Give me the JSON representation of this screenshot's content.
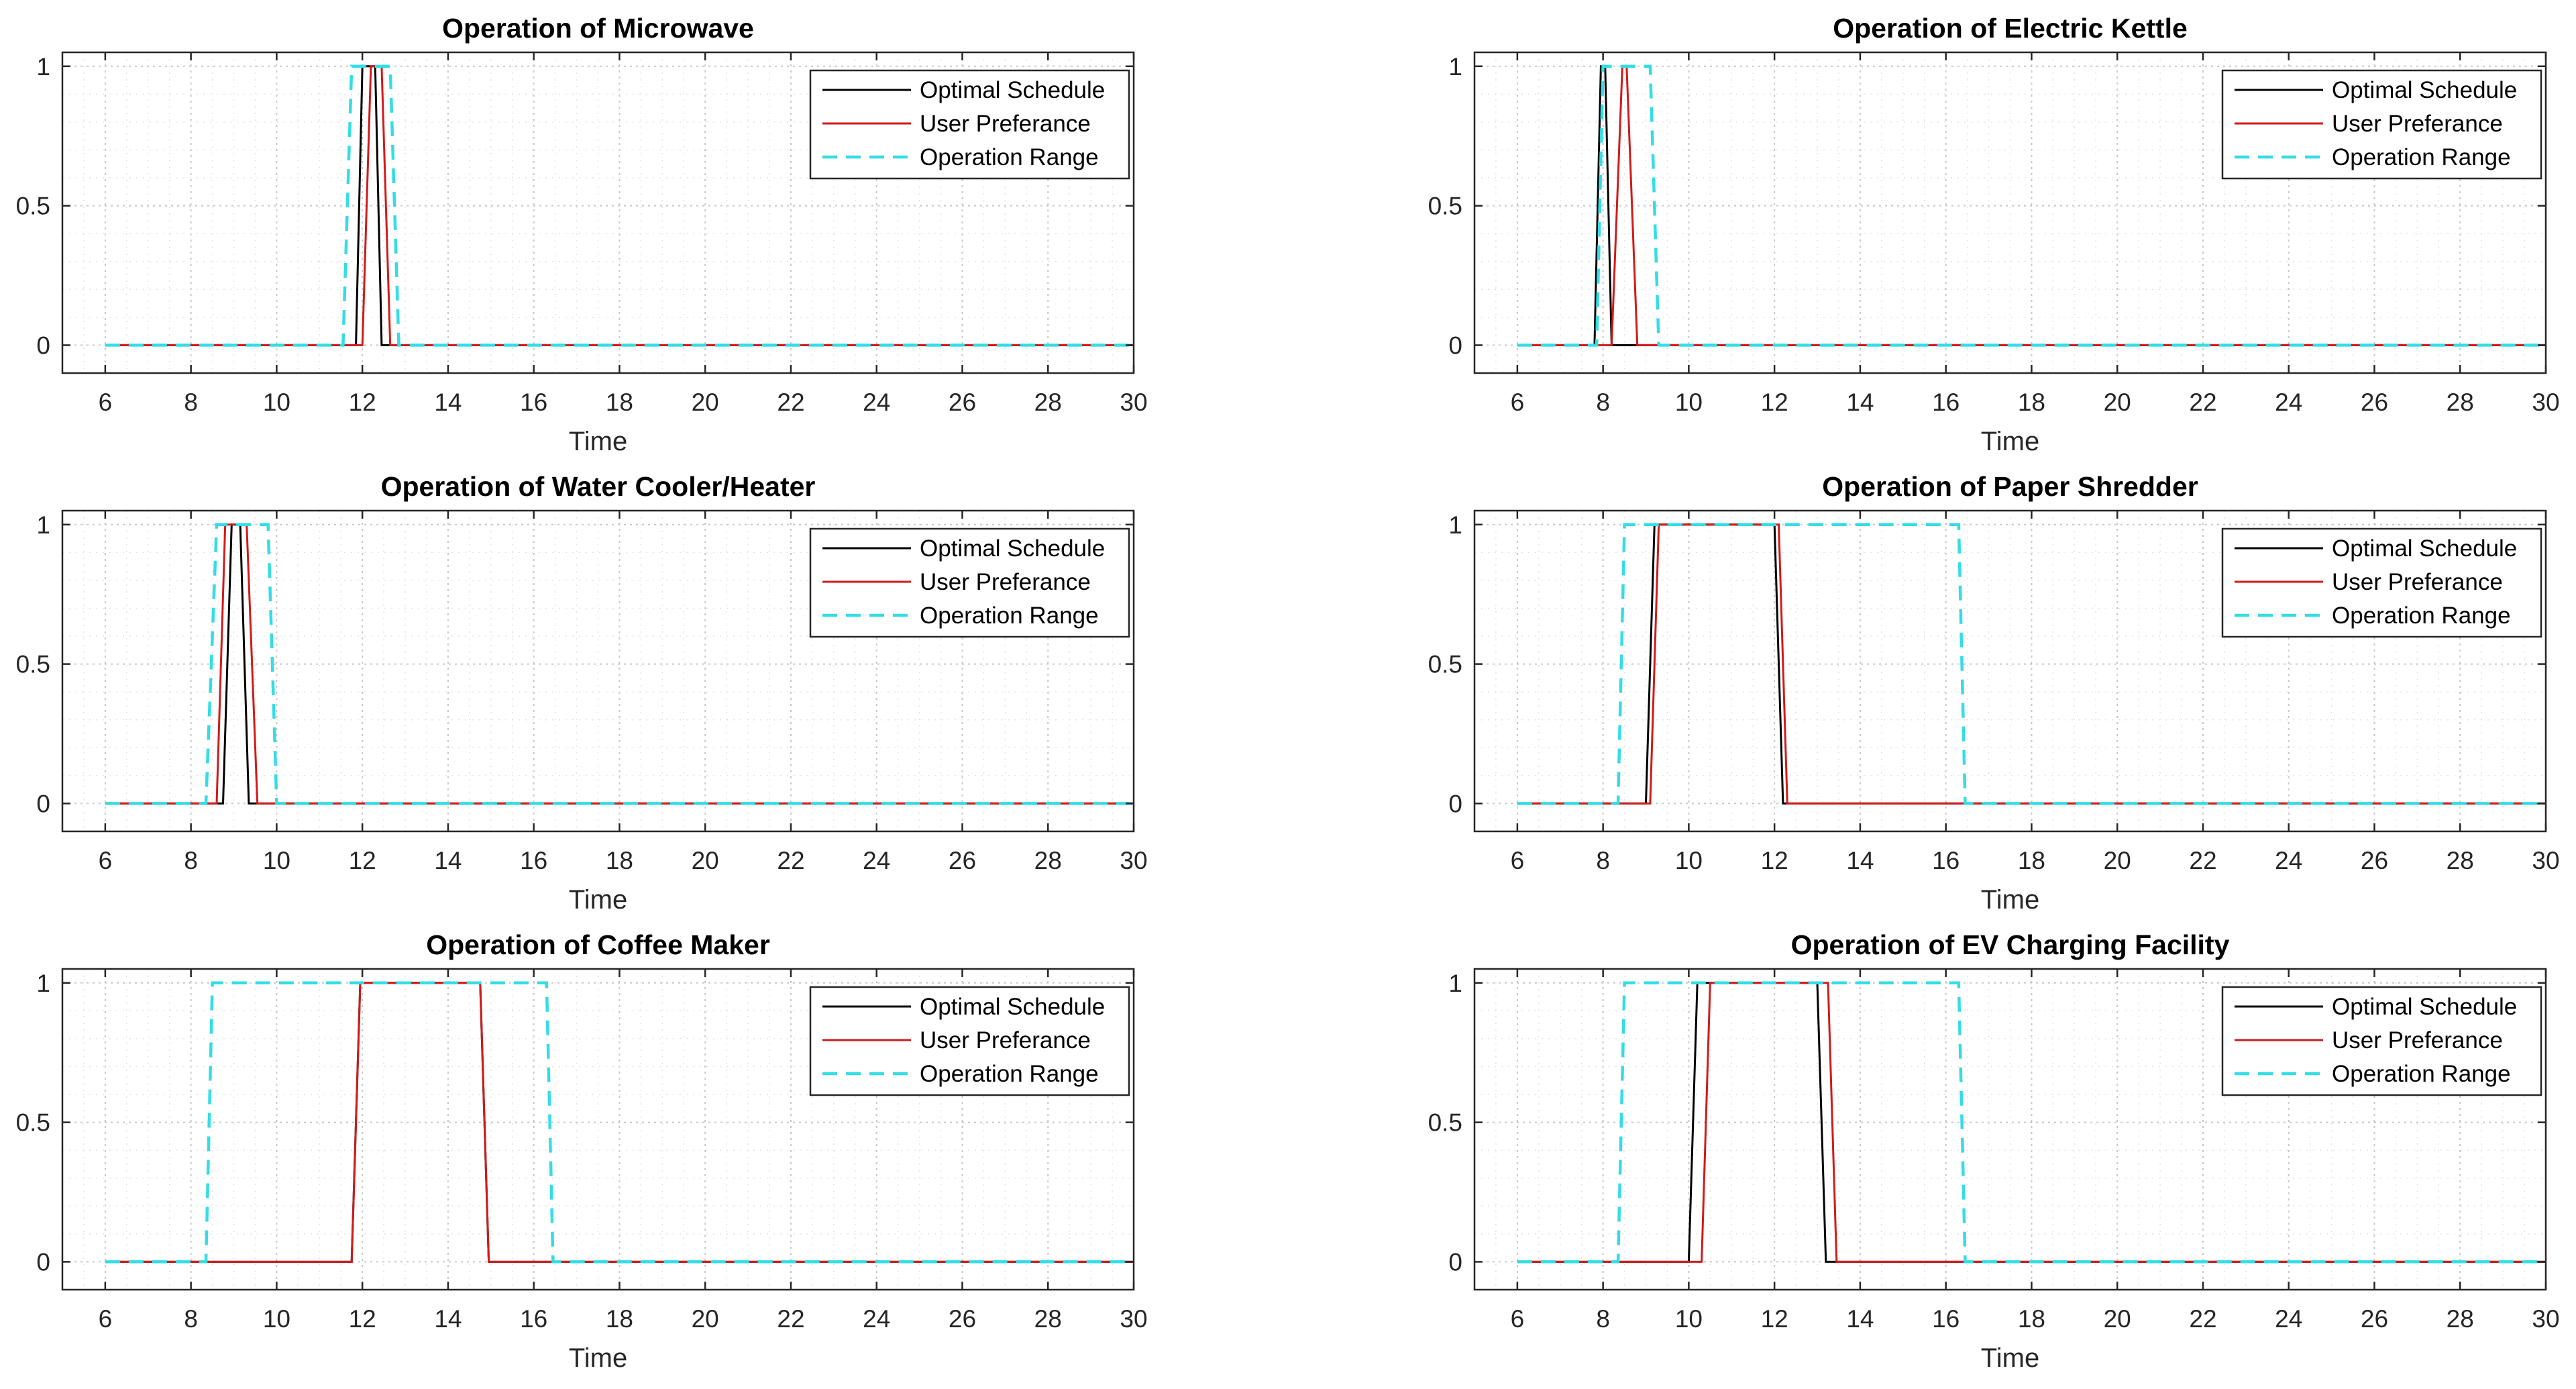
{
  "figure": {
    "background": "#ffffff",
    "series_styles": {
      "optimal": {
        "color": "#000000",
        "dash": "solid"
      },
      "user": {
        "color": "#d11a1a",
        "dash": "solid"
      },
      "range": {
        "color": "#33dde6",
        "dash": "dashed"
      }
    }
  },
  "chart_data": [
    {
      "type": "line",
      "title": "Operation of Microwave",
      "xlabel": "Time",
      "ylabel": "",
      "xlim": [
        5,
        30
      ],
      "ylim": [
        -0.1,
        1.05
      ],
      "xticks": [
        6,
        8,
        10,
        12,
        14,
        16,
        18,
        20,
        22,
        24,
        26,
        28,
        30
      ],
      "yticks": [
        0,
        0.5,
        1
      ],
      "ytick_labels": [
        "0",
        "0.5",
        "1"
      ],
      "grid": true,
      "legend_position": "top-right",
      "series": [
        {
          "name": "Optimal Schedule",
          "style": "optimal",
          "x": [
            6,
            11.85,
            12.0,
            12.3,
            12.45,
            30
          ],
          "y": [
            0,
            0,
            1,
            1,
            0,
            0
          ]
        },
        {
          "name": "User Preferance",
          "style": "user",
          "x": [
            6,
            12.0,
            12.2,
            12.45,
            12.65,
            30
          ],
          "y": [
            0,
            0,
            1,
            1,
            0,
            0
          ]
        },
        {
          "name": "Operation Range",
          "style": "range",
          "x": [
            6,
            11.55,
            11.75,
            12.65,
            12.85,
            30
          ],
          "y": [
            0,
            0,
            1,
            1,
            0,
            0
          ]
        }
      ]
    },
    {
      "type": "line",
      "title": "Operation of Electric Kettle",
      "xlabel": "Time",
      "ylabel": "",
      "xlim": [
        5,
        30
      ],
      "ylim": [
        -0.1,
        1.05
      ],
      "xticks": [
        6,
        8,
        10,
        12,
        14,
        16,
        18,
        20,
        22,
        24,
        26,
        28,
        30
      ],
      "yticks": [
        0,
        0.5,
        1
      ],
      "ytick_labels": [
        "0",
        "0.5",
        "1"
      ],
      "grid": true,
      "legend_position": "top-right",
      "series": [
        {
          "name": "Optimal Schedule",
          "style": "optimal",
          "x": [
            6,
            7.8,
            7.95,
            8.05,
            8.2,
            30
          ],
          "y": [
            0,
            0,
            1,
            1,
            0,
            0
          ]
        },
        {
          "name": "User Preferance",
          "style": "user",
          "x": [
            6,
            8.2,
            8.45,
            8.55,
            8.8,
            30
          ],
          "y": [
            0,
            0,
            1,
            1,
            0,
            0
          ]
        },
        {
          "name": "Operation Range",
          "style": "range",
          "x": [
            6,
            7.85,
            8.0,
            9.1,
            9.3,
            30
          ],
          "y": [
            0,
            0,
            1,
            1,
            0,
            0
          ]
        }
      ]
    },
    {
      "type": "line",
      "title": "Operation of Water Cooler/Heater",
      "xlabel": "Time",
      "ylabel": "",
      "xlim": [
        5,
        30
      ],
      "ylim": [
        -0.1,
        1.05
      ],
      "xticks": [
        6,
        8,
        10,
        12,
        14,
        16,
        18,
        20,
        22,
        24,
        26,
        28,
        30
      ],
      "yticks": [
        0,
        0.5,
        1
      ],
      "ytick_labels": [
        "0",
        "0.5",
        "1"
      ],
      "grid": true,
      "legend_position": "top-right",
      "series": [
        {
          "name": "Optimal Schedule",
          "style": "optimal",
          "x": [
            6,
            8.75,
            8.95,
            9.15,
            9.35,
            30
          ],
          "y": [
            0,
            0,
            1,
            1,
            0,
            0
          ]
        },
        {
          "name": "User Preferance",
          "style": "user",
          "x": [
            6,
            8.6,
            8.8,
            9.3,
            9.55,
            30
          ],
          "y": [
            0,
            0,
            1,
            1,
            0,
            0
          ]
        },
        {
          "name": "Operation Range",
          "style": "range",
          "x": [
            6,
            8.35,
            8.6,
            9.8,
            10.0,
            30
          ],
          "y": [
            0,
            0,
            1,
            1,
            0,
            0
          ]
        }
      ]
    },
    {
      "type": "line",
      "title": "Operation of Paper Shredder",
      "xlabel": "Time",
      "ylabel": "",
      "xlim": [
        5,
        30
      ],
      "ylim": [
        -0.1,
        1.05
      ],
      "xticks": [
        6,
        8,
        10,
        12,
        14,
        16,
        18,
        20,
        22,
        24,
        26,
        28,
        30
      ],
      "yticks": [
        0,
        0.5,
        1
      ],
      "ytick_labels": [
        "0",
        "0.5",
        "1"
      ],
      "grid": true,
      "legend_position": "top-right",
      "series": [
        {
          "name": "Optimal Schedule",
          "style": "optimal",
          "x": [
            6,
            9.0,
            9.2,
            12.0,
            12.2,
            30
          ],
          "y": [
            0,
            0,
            1,
            1,
            0,
            0
          ]
        },
        {
          "name": "User Preferance",
          "style": "user",
          "x": [
            6,
            9.1,
            9.3,
            12.1,
            12.3,
            16.4,
            30
          ],
          "y": [
            0,
            0,
            1,
            1,
            0,
            0,
            0
          ]
        },
        {
          "name": "Operation Range",
          "style": "range",
          "x": [
            6,
            8.35,
            8.5,
            16.3,
            16.45,
            30
          ],
          "y": [
            0,
            0,
            1,
            1,
            0,
            0
          ]
        }
      ]
    },
    {
      "type": "line",
      "title": "Operation of Coffee Maker",
      "xlabel": "Time",
      "ylabel": "",
      "xlim": [
        5,
        30
      ],
      "ylim": [
        -0.1,
        1.05
      ],
      "xticks": [
        6,
        8,
        10,
        12,
        14,
        16,
        18,
        20,
        22,
        24,
        26,
        28,
        30
      ],
      "yticks": [
        0,
        0.5,
        1
      ],
      "ytick_labels": [
        "0",
        "0.5",
        "1"
      ],
      "grid": true,
      "legend_position": "top-right",
      "series": [
        {
          "name": "Optimal Schedule",
          "style": "optimal",
          "x": [
            6,
            11.75,
            11.95,
            14.75,
            14.95,
            30
          ],
          "y": [
            0,
            0,
            1,
            1,
            0,
            0
          ]
        },
        {
          "name": "User Preferance",
          "style": "user",
          "x": [
            6,
            11.75,
            11.95,
            14.75,
            14.95,
            16.4,
            30
          ],
          "y": [
            0,
            0,
            1,
            1,
            0,
            0,
            0
          ]
        },
        {
          "name": "Operation Range",
          "style": "range",
          "x": [
            6,
            8.35,
            8.5,
            16.3,
            16.45,
            30
          ],
          "y": [
            0,
            0,
            1,
            1,
            0,
            0
          ]
        }
      ]
    },
    {
      "type": "line",
      "title": "Operation of EV Charging Facility",
      "xlabel": "Time",
      "ylabel": "",
      "xlim": [
        5,
        30
      ],
      "ylim": [
        -0.1,
        1.05
      ],
      "xticks": [
        6,
        8,
        10,
        12,
        14,
        16,
        18,
        20,
        22,
        24,
        26,
        28,
        30
      ],
      "yticks": [
        0,
        0.5,
        1
      ],
      "ytick_labels": [
        "0",
        "0.5",
        "1"
      ],
      "grid": true,
      "legend_position": "top-right",
      "series": [
        {
          "name": "Optimal Schedule",
          "style": "optimal",
          "x": [
            6,
            10.0,
            10.2,
            13.0,
            13.2,
            30
          ],
          "y": [
            0,
            0,
            1,
            1,
            0,
            0
          ]
        },
        {
          "name": "User Preferance",
          "style": "user",
          "x": [
            6,
            10.3,
            10.5,
            13.25,
            13.45,
            16.4,
            30
          ],
          "y": [
            0,
            0,
            1,
            1,
            0,
            0,
            0
          ]
        },
        {
          "name": "Operation Range",
          "style": "range",
          "x": [
            6,
            8.35,
            8.5,
            16.3,
            16.45,
            30
          ],
          "y": [
            0,
            0,
            1,
            1,
            0,
            0
          ]
        }
      ]
    }
  ]
}
